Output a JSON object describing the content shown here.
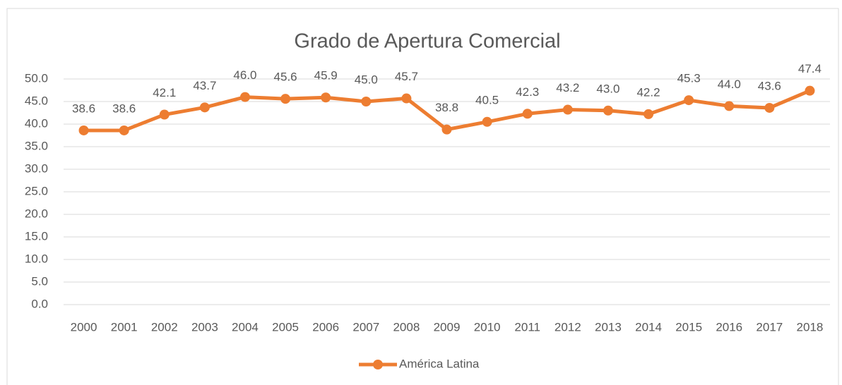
{
  "chart_data": {
    "type": "line",
    "title": "Grado de Apertura Comercial",
    "categories": [
      "2000",
      "2001",
      "2002",
      "2003",
      "2004",
      "2005",
      "2006",
      "2007",
      "2008",
      "2009",
      "2010",
      "2011",
      "2012",
      "2013",
      "2014",
      "2015",
      "2016",
      "2017",
      "2018"
    ],
    "series": [
      {
        "name": "América Latina",
        "color": "#ed7d31",
        "values": [
          38.6,
          38.6,
          42.1,
          43.7,
          46.0,
          45.6,
          45.9,
          45.0,
          45.7,
          38.8,
          40.5,
          42.3,
          43.2,
          43.0,
          42.2,
          45.3,
          44.0,
          43.6,
          47.4
        ],
        "value_labels": [
          "38.6",
          "38.6",
          "42.1",
          "43.7",
          "46.0",
          "45.6",
          "45.9",
          "45.0",
          "45.7",
          "38.8",
          "40.5",
          "42.3",
          "43.2",
          "43.0",
          "42.2",
          "45.3",
          "44.0",
          "43.6",
          "47.4"
        ]
      }
    ],
    "ylim": [
      0,
      50
    ],
    "yticks": [
      {
        "value": 0,
        "label": "0.0"
      },
      {
        "value": 5,
        "label": "5.0"
      },
      {
        "value": 10,
        "label": "10.0"
      },
      {
        "value": 15,
        "label": "15.0"
      },
      {
        "value": 20,
        "label": "20.0"
      },
      {
        "value": 25,
        "label": "25.0"
      },
      {
        "value": 30,
        "label": "30.0"
      },
      {
        "value": 35,
        "label": "35.0"
      },
      {
        "value": 40,
        "label": "40.0"
      },
      {
        "value": 45,
        "label": "45.0"
      },
      {
        "value": 50,
        "label": "50.0"
      }
    ],
    "grid": true,
    "legend": "bottom"
  }
}
